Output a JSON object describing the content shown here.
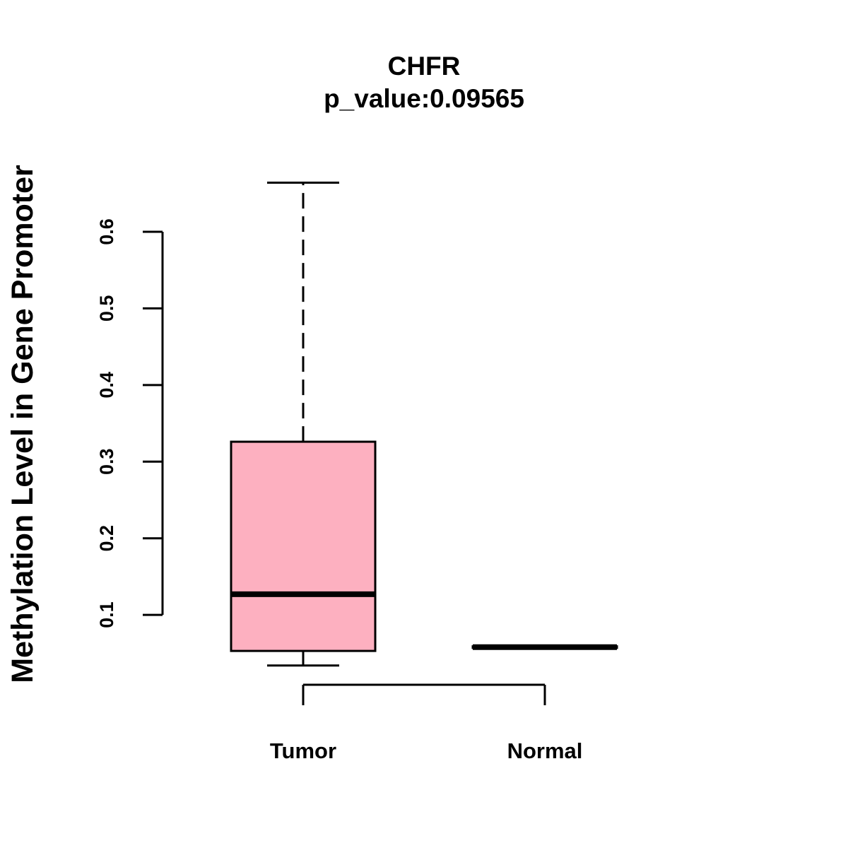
{
  "chart_data": {
    "type": "boxplot",
    "title": "CHFR",
    "subtitle": "p_value:0.09565",
    "ylabel": "Methylation Level in Gene Promoter",
    "xlabel": "",
    "yticks": [
      0.1,
      0.2,
      0.3,
      0.4,
      0.5,
      0.6
    ],
    "ytick_labels": [
      "0.1",
      "0.2",
      "0.3",
      "0.4",
      "0.5",
      "0.6"
    ],
    "categories": [
      "Tumor",
      "Normal"
    ],
    "series": [
      {
        "name": "Tumor",
        "min": 0.034,
        "q1": 0.053,
        "median": 0.127,
        "q3": 0.326,
        "max": 0.664,
        "color": "#FDB0C0"
      },
      {
        "name": "Normal",
        "min": 0.057,
        "q1": 0.057,
        "median": 0.058,
        "q3": 0.059,
        "max": 0.059,
        "color": "#FDB0C0"
      }
    ],
    "grid": false,
    "legend": false
  }
}
